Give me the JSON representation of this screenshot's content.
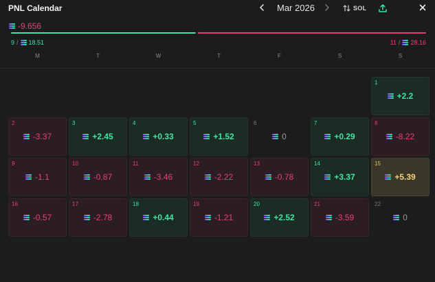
{
  "header": {
    "title": "PNL Calendar",
    "month": "Mar 2026",
    "prev_icon": "chevron-left-icon",
    "next_icon": "chevron-right-icon",
    "sort_label": "SOL",
    "sort_icon": "sort-icon",
    "export_icon": "upload-icon",
    "close_icon": "close-icon"
  },
  "summary": {
    "total_pnl": "-9.656",
    "win_days": "9",
    "win_amount": "18.51",
    "loss_days": "11",
    "loss_amount": "28.16",
    "win_fraction": 0.45,
    "separator": "/"
  },
  "weekdays": [
    "M",
    "T",
    "W",
    "T",
    "F",
    "S",
    "S"
  ],
  "days": [
    {
      "day": "1",
      "pnl": "+2.2",
      "kind": "win"
    },
    {
      "day": "2",
      "pnl": "-3.37",
      "kind": "loss"
    },
    {
      "day": "3",
      "pnl": "+2.45",
      "kind": "win"
    },
    {
      "day": "4",
      "pnl": "+0.33",
      "kind": "win"
    },
    {
      "day": "5",
      "pnl": "+1.52",
      "kind": "win"
    },
    {
      "day": "6",
      "pnl": "0",
      "kind": "zero"
    },
    {
      "day": "7",
      "pnl": "+0.29",
      "kind": "win"
    },
    {
      "day": "8",
      "pnl": "-8.22",
      "kind": "loss"
    },
    {
      "day": "9",
      "pnl": "-1.1",
      "kind": "loss"
    },
    {
      "day": "10",
      "pnl": "-0.87",
      "kind": "loss"
    },
    {
      "day": "11",
      "pnl": "-3.46",
      "kind": "loss"
    },
    {
      "day": "12",
      "pnl": "-2.22",
      "kind": "loss"
    },
    {
      "day": "13",
      "pnl": "-0.78",
      "kind": "loss"
    },
    {
      "day": "14",
      "pnl": "+3.37",
      "kind": "win"
    },
    {
      "day": "15",
      "pnl": "+5.39",
      "kind": "best"
    },
    {
      "day": "16",
      "pnl": "-0.57",
      "kind": "loss"
    },
    {
      "day": "17",
      "pnl": "-2.78",
      "kind": "loss"
    },
    {
      "day": "18",
      "pnl": "+0.44",
      "kind": "win"
    },
    {
      "day": "19",
      "pnl": "-1.21",
      "kind": "loss"
    },
    {
      "day": "20",
      "pnl": "+2.52",
      "kind": "win"
    },
    {
      "day": "21",
      "pnl": "-3.59",
      "kind": "loss"
    },
    {
      "day": "22",
      "pnl": "0",
      "kind": "zero"
    }
  ],
  "colors": {
    "win": "#3ee6a2",
    "loss": "#e8436f",
    "best": "#f0d477",
    "background": "#1c1c1e"
  }
}
